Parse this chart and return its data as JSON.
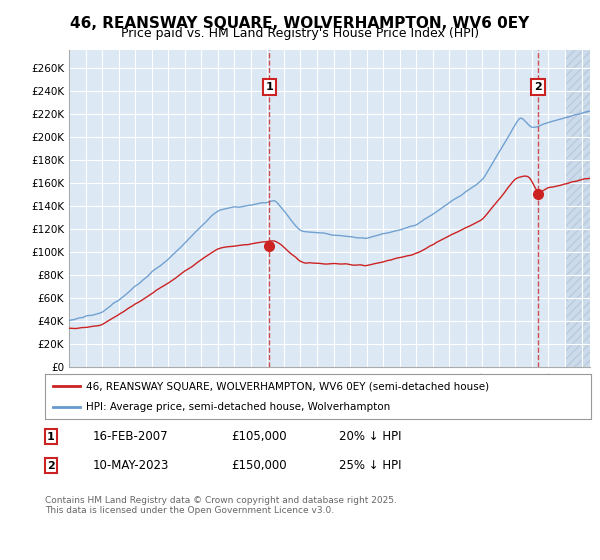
{
  "title": "46, REANSWAY SQUARE, WOLVERHAMPTON, WV6 0EY",
  "subtitle": "Price paid vs. HM Land Registry's House Price Index (HPI)",
  "title_fontsize": 11,
  "subtitle_fontsize": 9,
  "background_color": "#dce9f5",
  "plot_bg_color": "#dce9f5",
  "fig_bg_color": "#ffffff",
  "ylabel_values": [
    "£0",
    "£20K",
    "£40K",
    "£60K",
    "£80K",
    "£100K",
    "£120K",
    "£140K",
    "£160K",
    "£180K",
    "£200K",
    "£220K",
    "£240K",
    "£260K"
  ],
  "ylim": [
    0,
    275000
  ],
  "xlim_start": 1995,
  "xlim_end": 2026.5,
  "grid_color": "#ffffff",
  "red_line_color": "#cc2222",
  "blue_line_color": "#6699cc",
  "marker1_x": 2007.12,
  "marker1_y": 105000,
  "marker2_x": 2023.37,
  "marker2_y": 150000,
  "marker1_label": "1",
  "marker2_label": "2",
  "dashed_line_color": "#cc3333",
  "legend_entries": [
    "46, REANSWAY SQUARE, WOLVERHAMPTON, WV6 0EY (semi-detached house)",
    "HPI: Average price, semi-detached house, Wolverhampton"
  ],
  "annotation1": [
    "1",
    "16-FEB-2007",
    "£105,000",
    "20% ↓ HPI"
  ],
  "annotation2": [
    "2",
    "10-MAY-2023",
    "£150,000",
    "25% ↓ HPI"
  ],
  "footnote": "Contains HM Land Registry data © Crown copyright and database right 2025.\nThis data is licensed under the Open Government Licence v3.0."
}
